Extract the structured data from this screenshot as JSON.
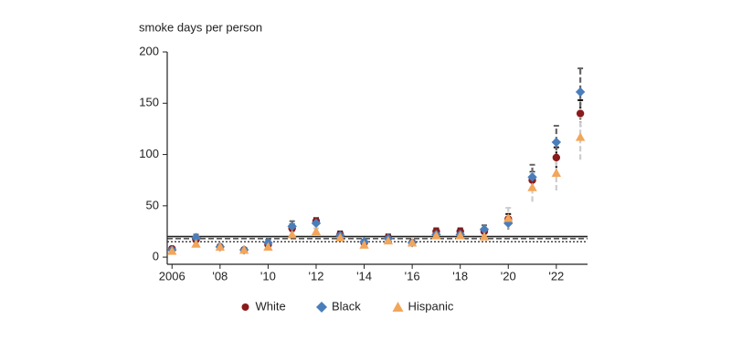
{
  "chart_data": {
    "type": "errorbar-scatter",
    "y_label": "smoke days per person",
    "x": [
      2006,
      2007,
      2008,
      2009,
      2010,
      2011,
      2012,
      2013,
      2014,
      2015,
      2016,
      2017,
      2018,
      2019,
      2020,
      2021,
      2022,
      2023
    ],
    "xlim": [
      2005.8,
      2023.3
    ],
    "xticks": [
      2006,
      {
        "value": 2008,
        "label": "'08"
      },
      {
        "value": 2010,
        "label": "'10"
      },
      {
        "value": 2012,
        "label": "'12"
      },
      {
        "value": 2014,
        "label": "'14"
      },
      {
        "value": 2016,
        "label": "'16"
      },
      {
        "value": 2018,
        "label": "'18"
      },
      {
        "value": 2020,
        "label": "'20"
      },
      {
        "value": 2022,
        "label": "'22"
      }
    ],
    "ylim": [
      -7,
      200
    ],
    "yticks": [
      0,
      50,
      100,
      150,
      200
    ],
    "reference_lines": [
      {
        "value": 20,
        "style": "solid"
      },
      {
        "value": 18,
        "style": "dashed"
      },
      {
        "value": 15,
        "style": "dotted"
      }
    ],
    "series": [
      {
        "name": "White",
        "color": "#8b1a1a",
        "marker": "circle",
        "error_color": "#111111",
        "error_style": "dotted",
        "values": [
          8,
          17,
          10,
          7,
          12,
          28,
          35,
          22,
          14,
          19,
          14,
          25,
          25,
          25,
          37,
          75,
          97,
          140
        ],
        "errors": [
          2,
          3,
          2,
          2,
          2,
          4,
          3,
          3,
          2,
          3,
          2,
          3,
          3,
          3,
          5,
          8,
          10,
          13
        ]
      },
      {
        "name": "Black",
        "color": "#4a7ebb",
        "marker": "diamond",
        "error_color": "#666666",
        "error_style": "dashed",
        "values": [
          7,
          19,
          10,
          7,
          14,
          30,
          33,
          21,
          15,
          18,
          14,
          22,
          22,
          27,
          33,
          78,
          112,
          161
        ],
        "errors": [
          2,
          3,
          2,
          2,
          3,
          5,
          4,
          3,
          2,
          3,
          2,
          3,
          3,
          4,
          6,
          12,
          16,
          23
        ]
      },
      {
        "name": "Hispanic",
        "color": "#f2a65a",
        "marker": "triangle",
        "error_color": "#cccccc",
        "error_style": "dashed",
        "values": [
          6,
          13,
          10,
          7,
          10,
          22,
          25,
          19,
          12,
          16,
          14,
          21,
          21,
          20,
          38,
          68,
          82,
          117
        ],
        "errors": [
          2,
          2,
          2,
          2,
          2,
          3,
          3,
          3,
          2,
          2,
          2,
          3,
          3,
          3,
          10,
          14,
          17,
          22
        ]
      }
    ],
    "legend": "bottom"
  }
}
